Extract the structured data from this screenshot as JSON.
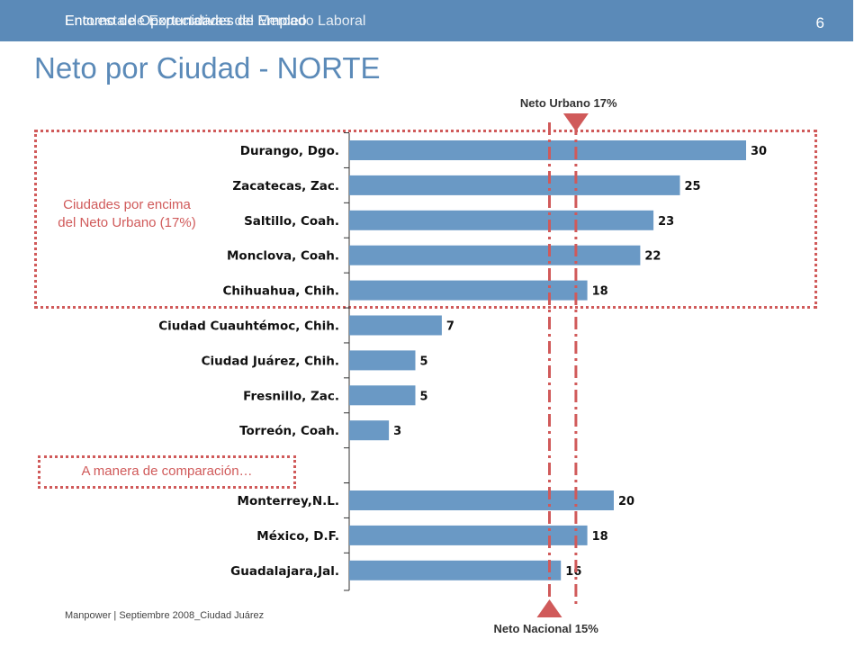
{
  "header": {
    "title_layer_a": "Entorno de Oportunidades de Empleo",
    "title_layer_b": "Encuesta de Expectativas del Mercado Laboral",
    "page_number": "6"
  },
  "page_title": "Neto por Ciudad - NORTE",
  "callouts": {
    "above_net": "Ciudades por encima del Neto Urbano (17%)",
    "comparison": "A manera de comparación…"
  },
  "footer": "Manpower | Septiembre 2008_Ciudad Juárez",
  "colors": {
    "header": "#5b8ab8",
    "bar": "#6a99c5",
    "accent": "#d05a5a"
  },
  "chart_data": {
    "type": "bar",
    "orientation": "horizontal",
    "title": "Neto por Ciudad - NORTE",
    "categories": [
      "Durango, Dgo.",
      "Zacatecas, Zac.",
      "Saltillo, Coah.",
      "Monclova, Coah.",
      "Chihuahua, Chih.",
      "Ciudad Cuauhtémoc, Chih.",
      "Ciudad Juárez, Chih.",
      "Fresnillo, Zac.",
      "Torreón, Coah.",
      "Monterrey,N.L.",
      "México, D.F.",
      "Guadalajara,Jal."
    ],
    "values": [
      30,
      25,
      23,
      22,
      18,
      7,
      5,
      5,
      3,
      20,
      18,
      16
    ],
    "value_labels": [
      "30",
      "25",
      "23",
      "22",
      "18",
      "7",
      "5",
      "5",
      "3",
      "20",
      "18",
      "16"
    ],
    "group_gap_after_index": 8,
    "xlim": [
      0,
      31
    ],
    "reference_lines": [
      {
        "label": "Neto Urbano 17%",
        "value": 17,
        "position": "top"
      },
      {
        "label": "Neto Nacional 15%",
        "value": 15,
        "position": "bottom"
      }
    ],
    "grid": false,
    "legend": "none"
  }
}
